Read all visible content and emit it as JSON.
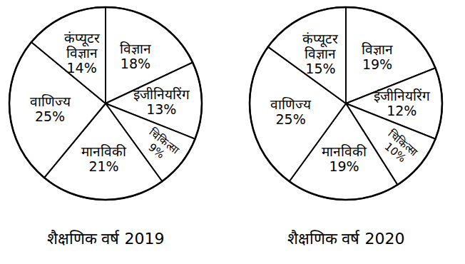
{
  "chart_data": [
    {
      "type": "pie",
      "title": "शैक्षणिक वर्ष 2019",
      "categories": [
        "विज्ञान",
        "इंजीनियरिंग",
        "चिकित्सा",
        "मानविकी",
        "वाणिज्य",
        "कंप्यूटर विज्ञान"
      ],
      "values": [
        18,
        13,
        9,
        21,
        25,
        14
      ],
      "value_labels": [
        "18%",
        "13%",
        "9%",
        "21%",
        "25%",
        "14%"
      ],
      "data_labels": true,
      "color": "#ffffff"
    },
    {
      "type": "pie",
      "title": "शैक्षणिक वर्ष 2020",
      "categories": [
        "विज्ञान",
        "इंजीनियरिंग",
        "चिकित्सा",
        "मानविकी",
        "वाणिज्य",
        "कंप्यूटर विज्ञान"
      ],
      "values": [
        19,
        12,
        10,
        19,
        25,
        15
      ],
      "value_labels": [
        "19%",
        "12%",
        "10%",
        "19%",
        "25%",
        "15%"
      ],
      "data_labels": true,
      "color": "#ffffff"
    }
  ]
}
